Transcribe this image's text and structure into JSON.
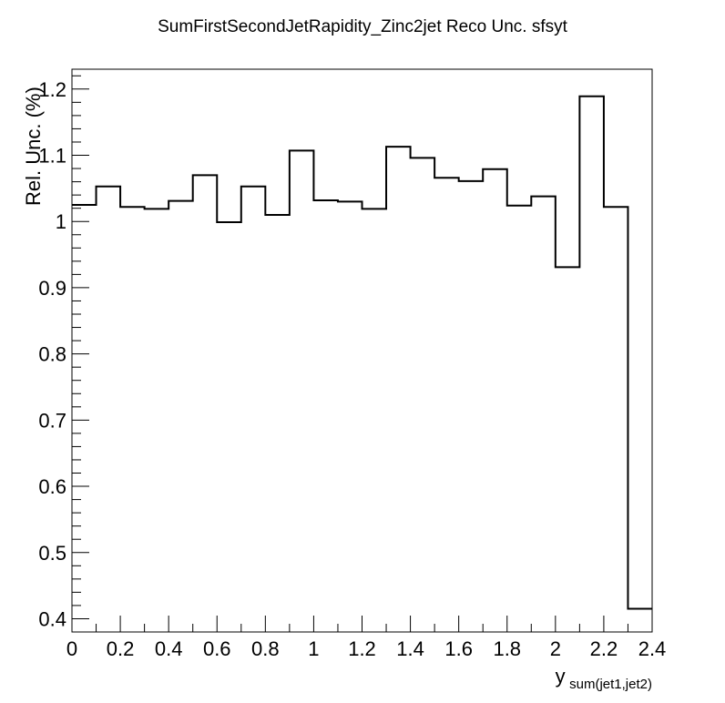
{
  "chart_data": {
    "type": "histogram",
    "title": "SumFirstSecondJetRapidity_Zinc2jet Reco Unc. sfsyt",
    "xlabel": {
      "main": "y",
      "sub": "sum(jet1,jet2)"
    },
    "ylabel": "Rel. Unc. (%)",
    "xlim": [
      0,
      2.4
    ],
    "ylim": [
      0.38,
      1.23
    ],
    "x_ticks": [
      "0",
      "0.2",
      "0.4",
      "0.6",
      "0.8",
      "1",
      "1.2",
      "1.4",
      "1.6",
      "1.8",
      "2",
      "2.2",
      "2.4"
    ],
    "y_ticks": [
      "0.4",
      "0.5",
      "0.6",
      "0.7",
      "0.8",
      "0.9",
      "1",
      "1.1",
      "1.2"
    ],
    "bin_edges": [
      0,
      0.1,
      0.2,
      0.3,
      0.4,
      0.5,
      0.6,
      0.7,
      0.8,
      0.9,
      1.0,
      1.1,
      1.2,
      1.3,
      1.4,
      1.5,
      1.6,
      1.7,
      1.8,
      1.9,
      2.0,
      2.1,
      2.2,
      2.3,
      2.4
    ],
    "values": [
      1.025,
      1.053,
      1.022,
      1.019,
      1.031,
      1.07,
      0.999,
      1.053,
      1.01,
      1.107,
      1.032,
      1.03,
      1.019,
      1.113,
      1.096,
      1.066,
      1.061,
      1.079,
      1.024,
      1.038,
      0.931,
      1.189,
      1.022,
      0.415
    ],
    "grid": false,
    "legend": "none",
    "line_color": "#000000"
  }
}
